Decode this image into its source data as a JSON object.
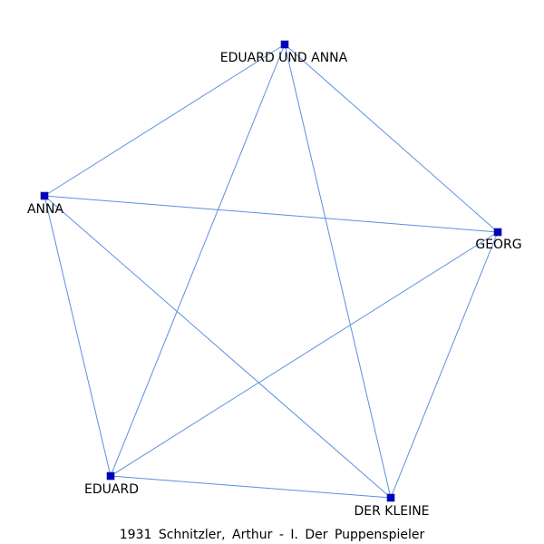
{
  "graph": {
    "nodes": [
      {
        "id": "eduard-und-anna",
        "label": "EDUARD UND ANNA"
      },
      {
        "id": "anna",
        "label": "ANNA"
      },
      {
        "id": "georg",
        "label": "GEORG"
      },
      {
        "id": "eduard",
        "label": "EDUARD"
      },
      {
        "id": "der-kleine",
        "label": "DER KLEINE"
      }
    ],
    "edges": [
      [
        "eduard-und-anna",
        "anna"
      ],
      [
        "eduard-und-anna",
        "georg"
      ],
      [
        "eduard-und-anna",
        "eduard"
      ],
      [
        "eduard-und-anna",
        "der-kleine"
      ],
      [
        "anna",
        "georg"
      ],
      [
        "anna",
        "eduard"
      ],
      [
        "anna",
        "der-kleine"
      ],
      [
        "georg",
        "eduard"
      ],
      [
        "georg",
        "der-kleine"
      ],
      [
        "eduard",
        "der-kleine"
      ]
    ],
    "colors": {
      "edge": "#5b8fe0",
      "node": "#0000cc"
    }
  },
  "caption": "1931 Schnitzler, Arthur - I. Der Puppenspieler"
}
